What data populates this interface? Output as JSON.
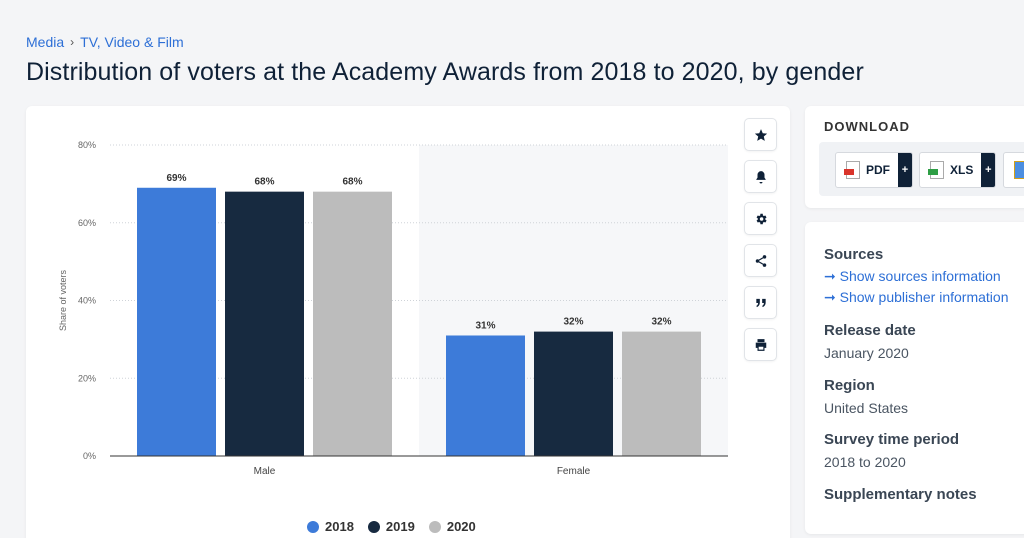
{
  "breadcrumb": {
    "items": [
      "Media",
      "TV, Video & Film"
    ],
    "separator": "›"
  },
  "page_title": "Distribution of voters at the Academy Awards from 2018 to 2020, by gender",
  "toolbar": {
    "icons": [
      "star-icon",
      "bell-icon",
      "gear-icon",
      "share-icon",
      "quote-icon",
      "print-icon"
    ]
  },
  "download": {
    "title": "DOWNLOAD",
    "buttons": [
      {
        "label": "PDF",
        "plus": "+"
      },
      {
        "label": "XLS",
        "plus": "+"
      },
      {
        "label": "",
        "plus": ""
      }
    ]
  },
  "info": {
    "sources_heading": "Sources",
    "show_sources": "➞ Show sources information",
    "show_publisher": "➞ Show publisher information",
    "release_heading": "Release date",
    "release_value": "January 2020",
    "region_heading": "Region",
    "region_value": "United States",
    "survey_heading": "Survey time period",
    "survey_value": "2018 to 2020",
    "supp_heading": "Supplementary notes"
  },
  "chart_data": {
    "type": "bar",
    "categories": [
      "Male",
      "Female"
    ],
    "series": [
      {
        "name": "2018",
        "values": [
          69,
          31
        ],
        "labels": [
          "69%",
          "31%"
        ],
        "color": "#3d7bd9"
      },
      {
        "name": "2019",
        "values": [
          68,
          32
        ],
        "labels": [
          "68%",
          "32%"
        ],
        "color": "#172a40"
      },
      {
        "name": "2020",
        "values": [
          68,
          32
        ],
        "labels": [
          "68%",
          "32%"
        ],
        "color": "#bcbcbc"
      }
    ],
    "ylabel": "Share of voters",
    "xlabel": "",
    "ylim": [
      0,
      80
    ],
    "yticks": [
      0,
      20,
      40,
      60,
      80
    ],
    "ytick_labels": [
      "0%",
      "20%",
      "40%",
      "60%",
      "80%"
    ],
    "grid": true,
    "legend_position": "bottom-center"
  }
}
